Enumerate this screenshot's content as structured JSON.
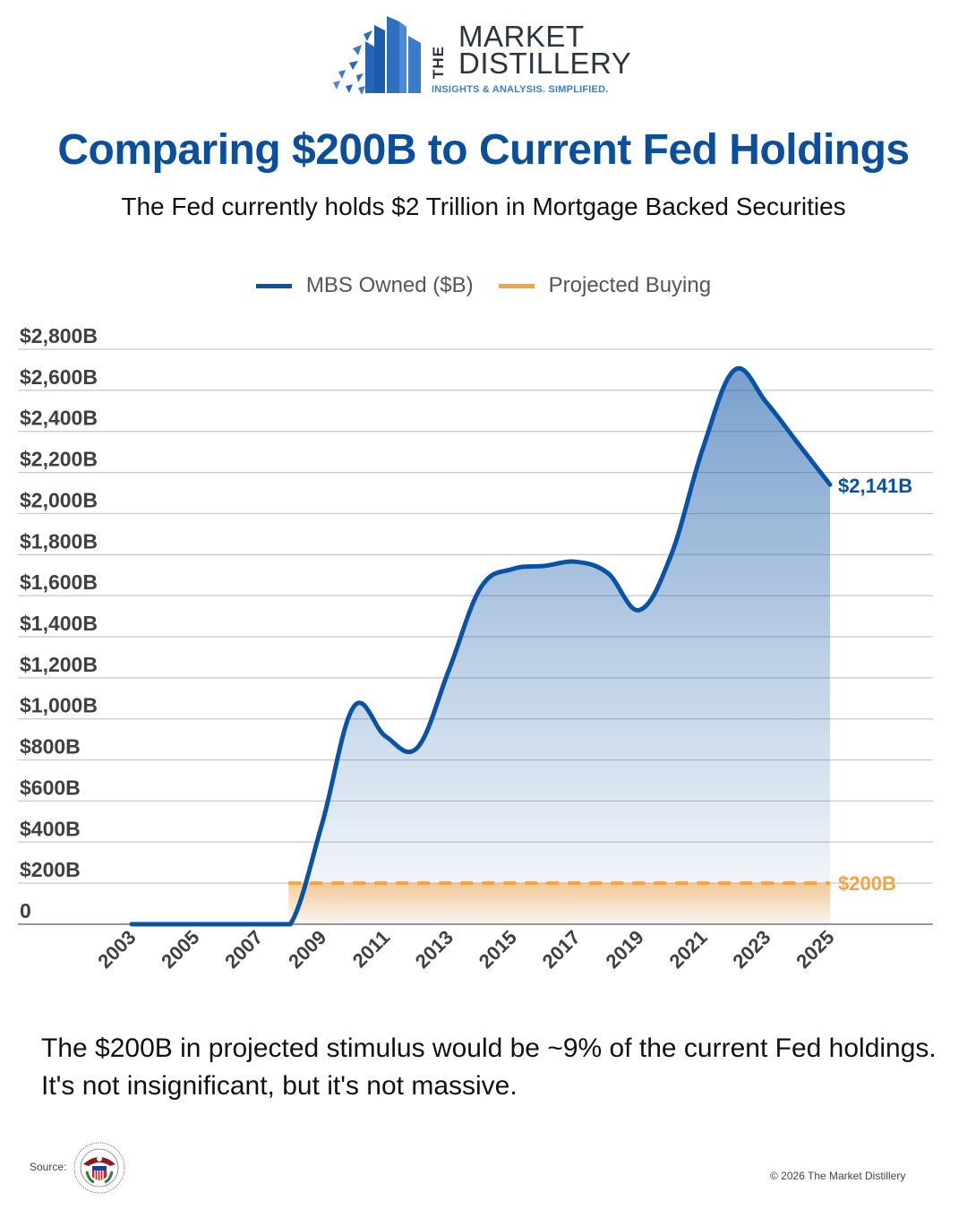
{
  "brand": {
    "the": "THE",
    "name_line1": "MARKET",
    "name_line2": "DISTILLERY",
    "tagline": "INSIGHTS & ANALYSIS. SIMPLIFIED."
  },
  "header": {
    "title": "Comparing $200B to Current Fed Holdings",
    "subtitle": "The Fed currently holds $2 Trillion in Mortgage Backed Securities"
  },
  "colors": {
    "mbs_line": "#0a52a3",
    "projected": "#f5a443",
    "title": "#0a4f9c",
    "grid": "#c8c8c8",
    "axis": "#777777"
  },
  "chart_data": {
    "type": "area",
    "title": "Comparing $200B to Current Fed Holdings",
    "xlabel": "",
    "ylabel": "",
    "x": [
      2003,
      2004,
      2005,
      2006,
      2007,
      2008,
      2009,
      2010,
      2011,
      2012,
      2013,
      2014,
      2015,
      2016,
      2017,
      2018,
      2019,
      2020,
      2021,
      2022,
      2023,
      2024,
      2025
    ],
    "x_tick_labels": [
      "2003",
      "2005",
      "2007",
      "2009",
      "2011",
      "2013",
      "2015",
      "2017",
      "2019",
      "2021",
      "2023",
      "2025"
    ],
    "y_tick_labels": [
      "0",
      "$200B",
      "$400B",
      "$600B",
      "$800B",
      "$1,000B",
      "$1,200B",
      "$1,400B",
      "$1,600B",
      "$1,800B",
      "$2,000B",
      "$2,200B",
      "$2,400B",
      "$2,600B",
      "$2,800B"
    ],
    "y_ticks": [
      0,
      200,
      400,
      600,
      800,
      1000,
      1200,
      1400,
      1600,
      1800,
      2000,
      2200,
      2400,
      2600,
      2800
    ],
    "ylim": [
      0,
      2800
    ],
    "grid": true,
    "legend_position": "top-center",
    "series": [
      {
        "name": "MBS Owned ($B)",
        "values": [
          0,
          0,
          0,
          0,
          0,
          0,
          490,
          1060,
          915,
          860,
          1240,
          1640,
          1730,
          1745,
          1765,
          1710,
          1530,
          1800,
          2320,
          2700,
          2540,
          2340,
          2141
        ],
        "end_label": "$2,141B"
      },
      {
        "name": "Projected Buying",
        "x_range": [
          2008,
          2025
        ],
        "value": 200,
        "style": "dashed",
        "end_label": "$200B"
      }
    ]
  },
  "footnote": "The $200B in projected stimulus would be ~9% of the current Fed holdings. It's not insignificant, but it's not massive.",
  "footer": {
    "source_label": "Source:",
    "source_icon": "federal-reserve-seal-icon",
    "copyright": "© 2026 The Market Distillery"
  }
}
